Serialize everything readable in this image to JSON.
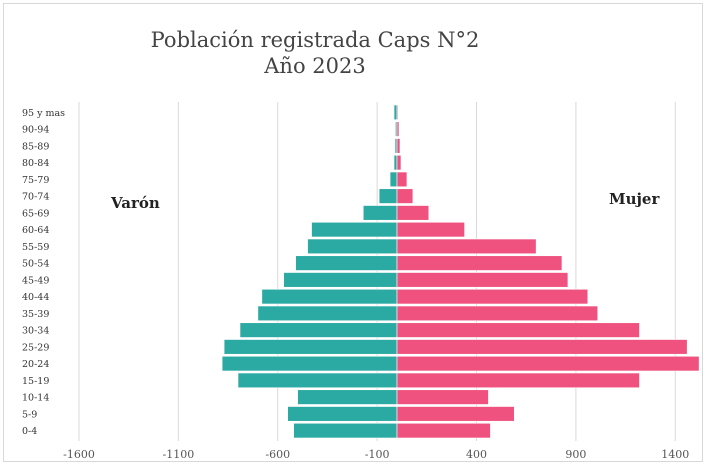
{
  "chart_data": {
    "type": "bar",
    "orientation": "horizontal",
    "title": "Población registrada Caps N°2",
    "subtitle": "Año 2023",
    "categories": [
      "0-4",
      "5-9",
      "10-14",
      "15-19",
      "20-24",
      "25-29",
      "30-34",
      "35-39",
      "40-44",
      "45-49",
      "50-54",
      "55-59",
      "60-64",
      "65-69",
      "70-74",
      "75-79",
      "80-84",
      "85-89",
      "90-94",
      "95 y mas"
    ],
    "series": [
      {
        "name": "Varón",
        "color": "#2aaaa3",
        "values": [
          -520,
          -550,
          -500,
          -800,
          -880,
          -870,
          -790,
          -700,
          -680,
          -570,
          -510,
          -450,
          -430,
          -170,
          -90,
          -35,
          -15,
          -10,
          -8,
          -15
        ]
      },
      {
        "name": "Mujer",
        "color": "#f0527f",
        "values": [
          470,
          590,
          460,
          1220,
          1520,
          1460,
          1220,
          1010,
          960,
          860,
          830,
          700,
          340,
          160,
          80,
          50,
          20,
          15,
          10,
          5
        ]
      }
    ],
    "x_ticks": [
      "-1600",
      "-1100",
      "-600",
      "-100",
      "400",
      "900",
      "1400"
    ],
    "xlim": [
      -1600,
      1620
    ],
    "grid": "vertical"
  }
}
